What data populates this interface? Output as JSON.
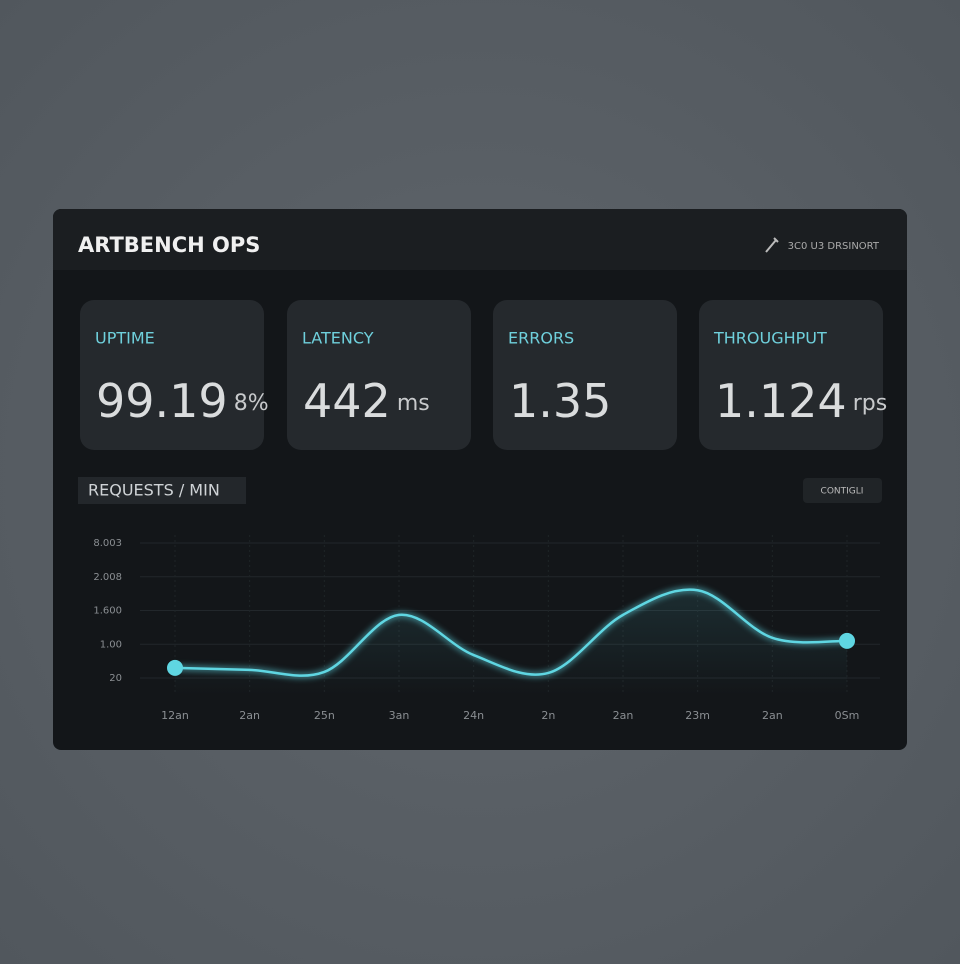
{
  "header": {
    "title": "ARTBENCH OPS",
    "status": "3C0 U3 DRSINORT"
  },
  "cards": [
    {
      "label": "UPTIME",
      "value": "99.19",
      "unit": "8%"
    },
    {
      "label": "LATENCY",
      "value": "442",
      "unit": "ms"
    },
    {
      "label": "ERRORS",
      "value": "1.35"
    },
    {
      "label": "THROUGHPUT",
      "value": "1.124",
      "unit": "rps"
    }
  ],
  "chart_data": {
    "type": "line",
    "title": "REQUESTS / MIN",
    "button": "CONTIGLI",
    "categories": [
      "12an",
      "2an",
      "25n",
      "3an",
      "24n",
      "2n",
      "2an",
      "23m",
      "2an",
      "0Sm"
    ],
    "y_labels": [
      "20",
      "1.00",
      "1.600",
      "2.008",
      "8.003"
    ],
    "ylim": [
      0,
      4
    ],
    "series": [
      {
        "color": "#5fd6e2",
        "values": [
          0.3,
          0.24,
          0.18,
          1.87,
          0.68,
          0.15,
          1.87,
          2.6,
          1.19,
          1.1
        ]
      }
    ],
    "grid": true
  }
}
